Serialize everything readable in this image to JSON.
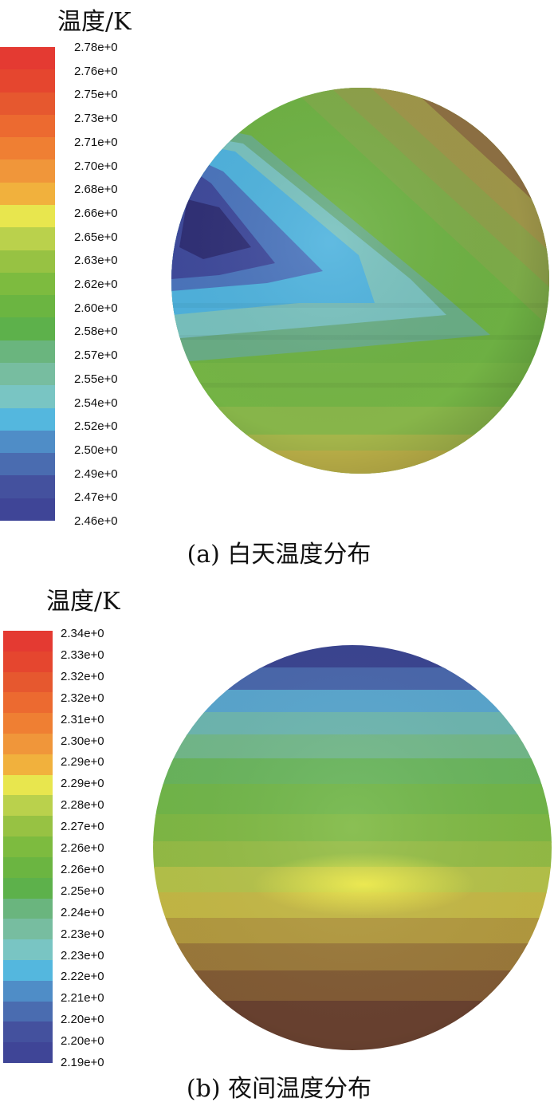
{
  "panels": [
    {
      "id": "day",
      "legend_title": "温度/K",
      "legend_labels": [
        "2.78e+0",
        "2.76e+0",
        "2.75e+0",
        "2.73e+0",
        "2.71e+0",
        "2.70e+0",
        "2.68e+0",
        "2.66e+0",
        "2.65e+0",
        "2.63e+0",
        "2.62e+0",
        "2.60e+0",
        "2.58e+0",
        "2.57e+0",
        "2.55e+0",
        "2.54e+0",
        "2.52e+0",
        "2.50e+0",
        "2.49e+0",
        "2.47e+0",
        "2.46e+0"
      ],
      "legend_colors": [
        "#e43a32",
        "#e5462f",
        "#e6582f",
        "#ec6a30",
        "#ef7f33",
        "#f0963a",
        "#f1b13d",
        "#e8e64e",
        "#bad14c",
        "#97c243",
        "#7dbb3f",
        "#6bb541",
        "#5db14b",
        "#6ab57e",
        "#77bda0",
        "#79c5c3",
        "#54b7de",
        "#4f8dc7",
        "#4a6cb0",
        "#44519e",
        "#3f4597"
      ],
      "caption": "(a) 白天温度分布"
    },
    {
      "id": "night",
      "legend_title": "温度/K",
      "legend_labels": [
        "2.34e+0",
        "2.33e+0",
        "2.32e+0",
        "2.32e+0",
        "2.31e+0",
        "2.30e+0",
        "2.29e+0",
        "2.29e+0",
        "2.28e+0",
        "2.27e+0",
        "2.26e+0",
        "2.26e+0",
        "2.25e+0",
        "2.24e+0",
        "2.23e+0",
        "2.23e+0",
        "2.22e+0",
        "2.21e+0",
        "2.20e+0",
        "2.20e+0",
        "2.19e+0"
      ],
      "legend_colors": [
        "#e43a32",
        "#e5462f",
        "#e6582f",
        "#ec6a30",
        "#ef7f33",
        "#f0963a",
        "#f1b13d",
        "#e8e64e",
        "#bad14c",
        "#97c243",
        "#7dbb3f",
        "#6bb541",
        "#5db14b",
        "#6ab57e",
        "#77bda0",
        "#79c5c3",
        "#54b7de",
        "#4f8dc7",
        "#4a6cb0",
        "#44519e",
        "#3f4597"
      ],
      "caption": "(b) 夜间温度分布"
    }
  ]
}
